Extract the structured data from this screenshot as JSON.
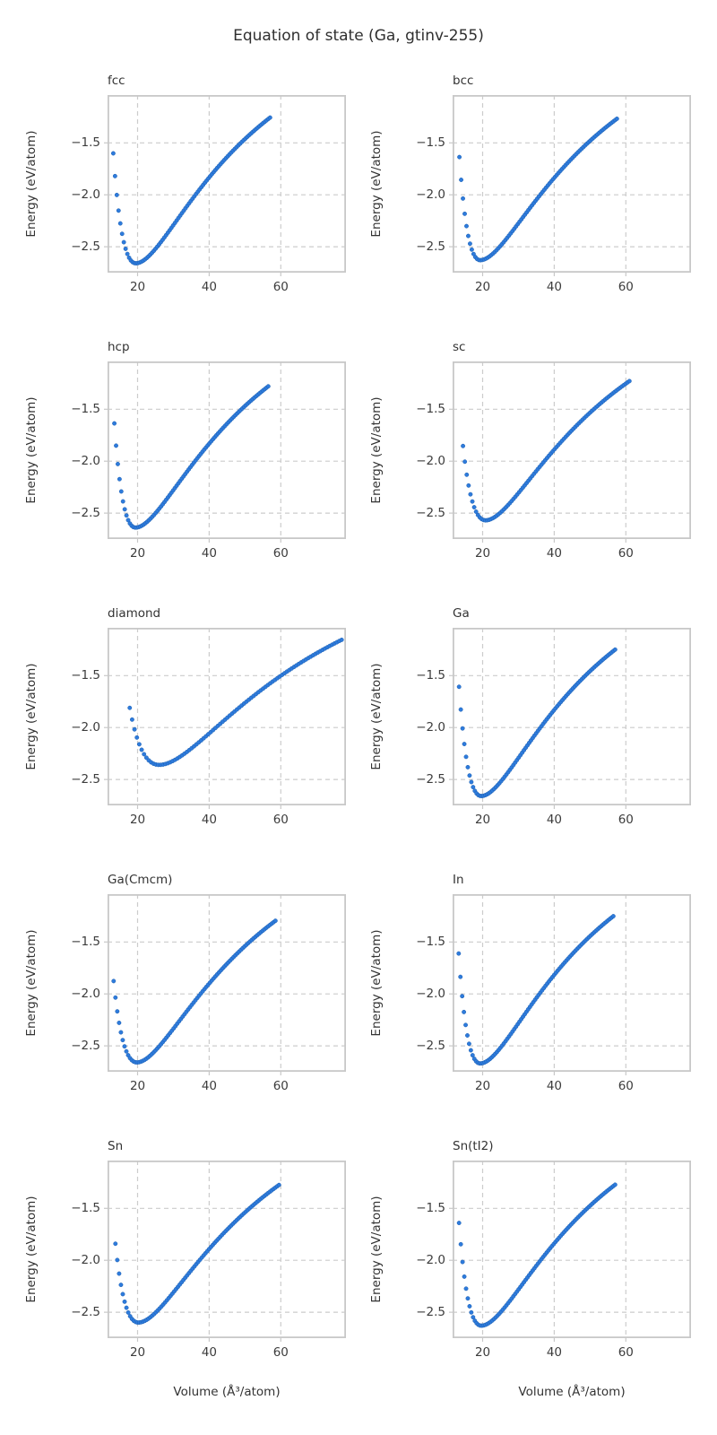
{
  "figure": {
    "title": "Equation of state (Ga, gtinv-255)",
    "xlabel": "Volume (Å³/atom)",
    "ylabel": "Energy (eV/atom)"
  },
  "style": {
    "dot_color": "#2e7bdc",
    "dot_edge": "#1c5fb0",
    "grid_color": "#cccccc",
    "spine_color": "#c8c8c8",
    "title_color": "#333333",
    "tick_color": "#3c3c3c",
    "background": "#ffffff"
  },
  "chart_data": {
    "type": "scatter",
    "layout": "5 rows x 2 columns, shared axes",
    "title": "Equation of state (Ga, gtinv-255)",
    "xlabel": "Volume (Å³/atom)",
    "ylabel": "Energy (eV/atom)",
    "xlim": [
      11.6,
      78.2
    ],
    "ylim": [
      -2.75,
      -1.04
    ],
    "xticks": [
      20,
      40,
      60
    ],
    "yticks": [
      -1.5,
      -2.0,
      -2.5
    ],
    "grid": true,
    "grid_style": "dashed",
    "n_points": 90,
    "panels": [
      {
        "title": "fcc",
        "v_start": 13.2,
        "e_first": -1.6,
        "v_end": 57.0,
        "e_last": -1.26,
        "v0": 19.5,
        "e0": -2.66,
        "a_left": 1.49,
        "a_right": 1.12
      },
      {
        "title": "bcc",
        "v_start": 13.5,
        "e_first": -1.62,
        "v_end": 57.5,
        "e_last": -1.27,
        "v0": 19.3,
        "e0": -2.63,
        "a_left": 1.59,
        "a_right": 1.08
      },
      {
        "title": "hcp",
        "v_start": 13.5,
        "e_first": -1.62,
        "v_end": 56.5,
        "e_last": -1.28,
        "v0": 19.4,
        "e0": -2.64,
        "a_left": 1.57,
        "a_right": 1.1
      },
      {
        "title": "sc",
        "v_start": 14.5,
        "e_first": -1.87,
        "v_end": 61.0,
        "e_last": -1.23,
        "v0": 20.8,
        "e0": -2.57,
        "a_left": 1.36,
        "a_right": 1.08
      },
      {
        "title": "diamond",
        "v_start": 17.8,
        "e_first": -1.83,
        "v_end": 77.0,
        "e_last": -1.15,
        "v0": 26.0,
        "e0": -2.36,
        "a_left": 1.12,
        "a_right": 0.97
      },
      {
        "title": "Ga",
        "v_start": 13.4,
        "e_first": -1.6,
        "v_end": 57.0,
        "e_last": -1.25,
        "v0": 19.6,
        "e0": -2.66,
        "a_left": 1.52,
        "a_right": 1.13
      },
      {
        "title": "Ga(Cmcm)",
        "v_start": 13.3,
        "e_first": -1.86,
        "v_end": 58.5,
        "e_last": -1.3,
        "v0": 19.8,
        "e0": -2.66,
        "a_left": 1.29,
        "a_right": 1.07
      },
      {
        "title": "In",
        "v_start": 13.3,
        "e_first": -1.6,
        "v_end": 56.5,
        "e_last": -1.26,
        "v0": 19.3,
        "e0": -2.67,
        "a_left": 1.56,
        "a_right": 1.13
      },
      {
        "title": "Sn",
        "v_start": 13.8,
        "e_first": -1.85,
        "v_end": 59.5,
        "e_last": -1.28,
        "v0": 20.2,
        "e0": -2.6,
        "a_left": 1.33,
        "a_right": 1.06
      },
      {
        "title": "Sn(tI2)",
        "v_start": 13.4,
        "e_first": -1.62,
        "v_end": 57.0,
        "e_last": -1.27,
        "v0": 19.6,
        "e0": -2.63,
        "a_left": 1.49,
        "a_right": 1.1
      }
    ],
    "point_model_note": "E(V) = e0 + D*(1-exp(-a*(V^(1/3)-v0^(1/3))))^2 with D=-e0, a=a_left below v0 else a_right; 90 points evenly spaced in V from v_start to v_end per panel"
  }
}
